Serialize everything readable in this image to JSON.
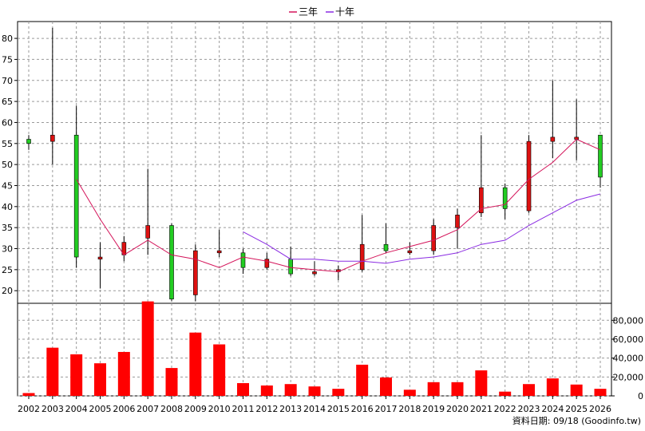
{
  "chart_data": {
    "type": "candlestick",
    "legend": {
      "position": "top-center",
      "items": [
        {
          "label": "三年",
          "color": "#d4145a"
        },
        {
          "label": "十年",
          "color": "#8a2be2"
        }
      ]
    },
    "grid": true,
    "x": [
      "2002",
      "2003",
      "2004",
      "2005",
      "2006",
      "2007",
      "2008",
      "2009",
      "2010",
      "2011",
      "2012",
      "2013",
      "2014",
      "2015",
      "2016",
      "2017",
      "2018",
      "2019",
      "2020",
      "2021",
      "2022",
      "2023",
      "2024",
      "2025",
      "2026"
    ],
    "price_axis": {
      "ticks": [
        20,
        25,
        30,
        35,
        40,
        45,
        50,
        55,
        60,
        65,
        70,
        75,
        80
      ],
      "ylim": [
        17,
        84
      ]
    },
    "volume_axis": {
      "ticks": [
        0,
        20000,
        40000,
        60000,
        80000
      ],
      "tick_labels": [
        "0",
        "20,000",
        "40,000",
        "60,000",
        "80,000"
      ],
      "ylim": [
        0,
        98000
      ]
    },
    "candles": [
      {
        "open": 55.0,
        "close": 56.0,
        "high": 57.0,
        "low": 53.5
      },
      {
        "open": 57.0,
        "close": 55.5,
        "high": 82.5,
        "low": 50.0
      },
      {
        "open": 28.0,
        "close": 57.0,
        "high": 64.0,
        "low": 25.5
      },
      {
        "open": 28.0,
        "close": 27.5,
        "high": 31.5,
        "low": 20.5
      },
      {
        "open": 31.5,
        "close": 28.5,
        "high": 33.0,
        "low": 27.0
      },
      {
        "open": 35.5,
        "close": 32.5,
        "high": 49.0,
        "low": 28.5
      },
      {
        "open": 18.0,
        "close": 35.5,
        "high": 36.0,
        "low": 17.5
      },
      {
        "open": 29.5,
        "close": 19.0,
        "high": 31.0,
        "low": 17.5
      },
      {
        "open": 29.5,
        "close": 29.0,
        "high": 34.5,
        "low": 28.0
      },
      {
        "open": 25.5,
        "close": 29.0,
        "high": 30.0,
        "low": 24.0
      },
      {
        "open": 27.5,
        "close": 25.5,
        "high": 29.0,
        "low": 25.0
      },
      {
        "open": 24.0,
        "close": 27.5,
        "high": 30.5,
        "low": 23.5
      },
      {
        "open": 24.5,
        "close": 24.0,
        "high": 27.0,
        "low": 23.5
      },
      {
        "open": 25.0,
        "close": 24.5,
        "high": 26.0,
        "low": 22.5
      },
      {
        "open": 31.0,
        "close": 25.0,
        "high": 38.0,
        "low": 24.5
      },
      {
        "open": 29.5,
        "close": 31.0,
        "high": 36.0,
        "low": 29.0
      },
      {
        "open": 29.5,
        "close": 29.0,
        "high": 31.5,
        "low": 28.5
      },
      {
        "open": 35.5,
        "close": 29.5,
        "high": 37.0,
        "low": 28.5
      },
      {
        "open": 38.0,
        "close": 35.0,
        "high": 39.5,
        "low": 30.0
      },
      {
        "open": 44.5,
        "close": 38.5,
        "high": 57.0,
        "low": 37.5
      },
      {
        "open": 39.5,
        "close": 44.5,
        "high": 45.5,
        "low": 37.0
      },
      {
        "open": 55.5,
        "close": 39.0,
        "high": 57.0,
        "low": 38.5
      },
      {
        "open": 56.5,
        "close": 55.5,
        "high": 70.0,
        "low": 51.5
      },
      {
        "open": 56.5,
        "close": 56.0,
        "high": 65.5,
        "low": 51.0
      },
      {
        "open": 47.0,
        "close": 57.0,
        "high": 57.0,
        "low": 44.5
      }
    ],
    "series": [
      {
        "name": "三年",
        "color": "#d4145a",
        "values": [
          null,
          null,
          46.5,
          37.0,
          28.5,
          32.0,
          28.5,
          27.5,
          25.5,
          28.0,
          27.0,
          25.5,
          25.0,
          24.5,
          27.0,
          29.0,
          30.5,
          32.0,
          34.5,
          39.5,
          40.5,
          46.5,
          50.5,
          56.0,
          53.5
        ]
      },
      {
        "name": "十年",
        "color": "#8a2be2",
        "values": [
          null,
          null,
          null,
          null,
          null,
          null,
          null,
          null,
          null,
          34.0,
          31.0,
          27.5,
          27.5,
          27.0,
          27.0,
          26.5,
          27.5,
          28.0,
          29.0,
          31.0,
          32.0,
          35.5,
          38.5,
          41.5,
          43.0
        ]
      }
    ],
    "volume": [
      3000,
      51000,
      44000,
      34500,
      46500,
      100000,
      29500,
      67000,
      54500,
      13500,
      11000,
      12500,
      10000,
      7500,
      33000,
      19500,
      6500,
      14500,
      14500,
      27000,
      4500,
      12500,
      18500,
      12000,
      7500
    ],
    "footer": "資料日期: 09/18  (Goodinfo.tw)"
  }
}
